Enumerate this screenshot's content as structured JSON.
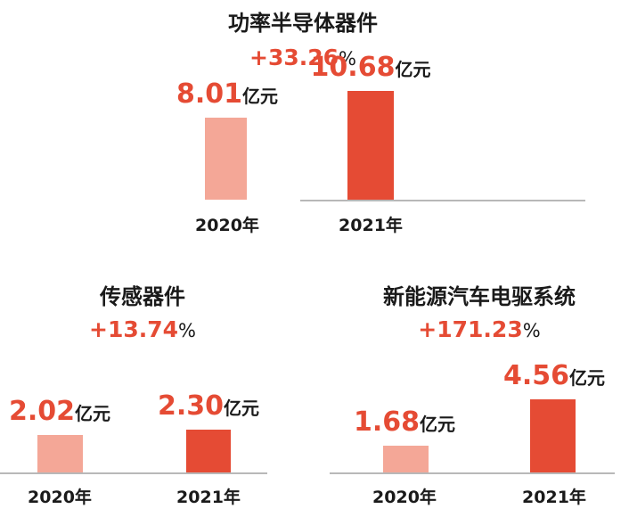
{
  "colors": {
    "bar_2020": "#f4a797",
    "bar_2021": "#e54b34",
    "accent": "#e54b34"
  },
  "chart_data": [
    {
      "type": "bar",
      "title": "功率半导体器件",
      "growth": "+33.26",
      "growth_unit": "%",
      "categories": [
        "2020年",
        "2021年"
      ],
      "values": [
        8.01,
        10.68
      ],
      "value_labels": [
        "8.01",
        "10.68"
      ],
      "unit": "亿元"
    },
    {
      "type": "bar",
      "title": "传感器件",
      "growth": "+13.74",
      "growth_unit": "%",
      "categories": [
        "2020年",
        "2021年"
      ],
      "values": [
        2.02,
        2.3
      ],
      "value_labels": [
        "2.02",
        "2.30"
      ],
      "unit": "亿元"
    },
    {
      "type": "bar",
      "title": "新能源汽车电驱系统",
      "growth": "+171.23",
      "growth_unit": "%",
      "categories": [
        "2020年",
        "2021年"
      ],
      "values": [
        1.68,
        4.56
      ],
      "value_labels": [
        "1.68",
        "4.56"
      ],
      "unit": "亿元"
    }
  ]
}
